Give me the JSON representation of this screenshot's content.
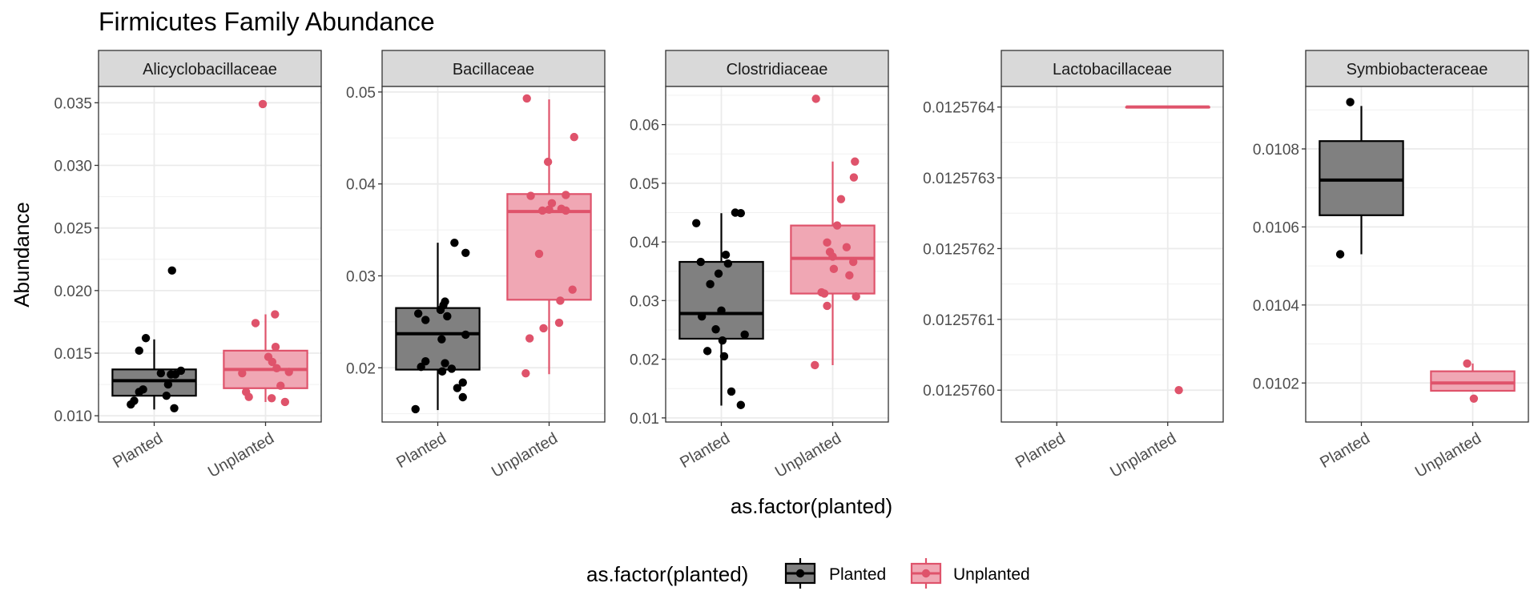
{
  "chart_data": {
    "type": "box",
    "title": "Firmicutes Family Abundance",
    "xlabel": "as.factor(planted)",
    "ylabel": "Abundance",
    "categories": [
      "Planted",
      "Unplanted"
    ],
    "legend": {
      "title": "as.factor(planted)",
      "position": "bottom",
      "items": [
        {
          "label": "Planted",
          "color": "#000000",
          "fill": "#808080"
        },
        {
          "label": "Unplanted",
          "color": "#DF536B",
          "fill": "#F0A7B4"
        }
      ]
    },
    "grid": true,
    "facets": [
      {
        "name": "Alicyclobacillaceae",
        "ylim": [
          0.0095,
          0.0363
        ],
        "yticks": [
          "0.010",
          "0.015",
          "0.020",
          "0.025",
          "0.030",
          "0.035"
        ],
        "groups": [
          {
            "group": "Planted",
            "min": 0.0105,
            "q1": 0.0116,
            "median": 0.0128,
            "q3": 0.0137,
            "max": 0.0161,
            "points": [
              [
                -0.42,
                0.0109
              ],
              [
                -0.36,
                0.0112
              ],
              [
                -0.27,
                0.0119
              ],
              [
                -0.2,
                0.0121
              ],
              [
                -0.27,
                0.0152
              ],
              [
                -0.15,
                0.0162
              ],
              [
                0.32,
                0.0216
              ],
              [
                0.12,
                0.0134
              ],
              [
                0.3,
                0.0133
              ],
              [
                0.38,
                0.0133
              ],
              [
                0.48,
                0.0136
              ],
              [
                0.25,
                0.0125
              ],
              [
                0.22,
                0.0116
              ],
              [
                0.36,
                0.0106
              ]
            ]
          },
          {
            "group": "Unplanted",
            "min": 0.0111,
            "q1": 0.0122,
            "median": 0.0137,
            "q3": 0.0152,
            "max": 0.0181,
            "points": [
              [
                -0.05,
                0.0349
              ],
              [
                -0.42,
                0.0134
              ],
              [
                -0.35,
                0.0119
              ],
              [
                -0.3,
                0.0115
              ],
              [
                -0.18,
                0.0174
              ],
              [
                0.17,
                0.0181
              ],
              [
                0.18,
                0.0155
              ],
              [
                0.05,
                0.0147
              ],
              [
                0.12,
                0.0143
              ],
              [
                0.2,
                0.0138
              ],
              [
                0.11,
                0.0114
              ],
              [
                0.27,
                0.0124
              ],
              [
                0.35,
                0.0111
              ],
              [
                0.42,
                0.0135
              ]
            ]
          }
        ]
      },
      {
        "name": "Bacillaceae",
        "ylim": [
          0.0141,
          0.0506
        ],
        "yticks": [
          "0.02",
          "0.03",
          "0.04",
          "0.05"
        ],
        "groups": [
          {
            "group": "Planted",
            "min": 0.0154,
            "q1": 0.0198,
            "median": 0.0237,
            "q3": 0.0265,
            "max": 0.0336,
            "points": [
              [
                -0.4,
                0.0155
              ],
              [
                -0.35,
                0.0259
              ],
              [
                -0.22,
                0.0252
              ],
              [
                -0.22,
                0.0207
              ],
              [
                0.05,
                0.0263
              ],
              [
                0.1,
                0.0268
              ],
              [
                0.13,
                0.0272
              ],
              [
                0.07,
                0.0231
              ],
              [
                0.08,
                0.0196
              ],
              [
                0.13,
                0.0205
              ],
              [
                0.17,
                0.0256
              ],
              [
                0.3,
                0.0336
              ],
              [
                0.35,
                0.0178
              ],
              [
                0.45,
                0.0184
              ],
              [
                0.45,
                0.0168
              ],
              [
                0.5,
                0.0325
              ],
              [
                0.5,
                0.0236
              ],
              [
                -0.3,
                0.0201
              ],
              [
                0.25,
                0.0199
              ]
            ]
          },
          {
            "group": "Unplanted",
            "min": 0.0193,
            "q1": 0.0274,
            "median": 0.037,
            "q3": 0.0389,
            "max": 0.0492,
            "points": [
              [
                -0.4,
                0.0493
              ],
              [
                -0.42,
                0.0194
              ],
              [
                -0.35,
                0.0232
              ],
              [
                -0.33,
                0.0387
              ],
              [
                -0.12,
                0.0371
              ],
              [
                -0.02,
                0.0424
              ],
              [
                -0.18,
                0.0324
              ],
              [
                -0.1,
                0.0243
              ],
              [
                0.0,
                0.0372
              ],
              [
                0.05,
                0.0379
              ],
              [
                0.2,
                0.0273
              ],
              [
                0.18,
                0.0249
              ],
              [
                0.22,
                0.0373
              ],
              [
                0.3,
                0.0388
              ],
              [
                0.3,
                0.0371
              ],
              [
                0.45,
                0.0451
              ],
              [
                0.42,
                0.0285
              ]
            ]
          }
        ]
      },
      {
        "name": "Clostridiaceae",
        "ylim": [
          0.0093,
          0.0665
        ],
        "yticks": [
          "0.01",
          "0.02",
          "0.03",
          "0.04",
          "0.05",
          "0.06"
        ],
        "groups": [
          {
            "group": "Planted",
            "min": 0.0121,
            "q1": 0.0235,
            "median": 0.0278,
            "q3": 0.0366,
            "max": 0.0449,
            "points": [
              [
                -0.45,
                0.0432
              ],
              [
                -0.37,
                0.0366
              ],
              [
                -0.35,
                0.0273
              ],
              [
                -0.25,
                0.0214
              ],
              [
                -0.2,
                0.0328
              ],
              [
                -0.1,
                0.0251
              ],
              [
                -0.05,
                0.0346
              ],
              [
                0.0,
                0.0283
              ],
              [
                0.02,
                0.0232
              ],
              [
                0.05,
                0.0205
              ],
              [
                0.08,
                0.0378
              ],
              [
                0.12,
                0.0363
              ],
              [
                0.18,
                0.0145
              ],
              [
                0.25,
                0.045
              ],
              [
                0.35,
                0.0449
              ],
              [
                0.35,
                0.0122
              ],
              [
                0.42,
                0.0242
              ]
            ]
          },
          {
            "group": "Unplanted",
            "min": 0.019,
            "q1": 0.0312,
            "median": 0.0372,
            "q3": 0.0428,
            "max": 0.0537,
            "points": [
              [
                -0.3,
                0.0644
              ],
              [
                -0.32,
                0.019
              ],
              [
                -0.2,
                0.0314
              ],
              [
                -0.15,
                0.0312
              ],
              [
                -0.1,
                0.0291
              ],
              [
                -0.1,
                0.0399
              ],
              [
                -0.05,
                0.0383
              ],
              [
                0.0,
                0.0375
              ],
              [
                0.02,
                0.0354
              ],
              [
                0.08,
                0.0428
              ],
              [
                0.15,
                0.0473
              ],
              [
                0.25,
                0.0391
              ],
              [
                0.3,
                0.0343
              ],
              [
                0.37,
                0.0366
              ],
              [
                0.4,
                0.0537
              ],
              [
                0.38,
                0.051
              ],
              [
                0.42,
                0.0307
              ]
            ]
          }
        ]
      },
      {
        "name": "Lactobacillaceae",
        "ylim": [
          0.012575955,
          0.012576429
        ],
        "yticks": [
          "0.0125760",
          "0.0125761",
          "0.0125762",
          "0.0125763",
          "0.0125764"
        ],
        "groups": [
          {
            "group": "Unplanted",
            "min": 0.0125764,
            "q1": 0.0125764,
            "median": 0.0125764,
            "q3": 0.0125764,
            "max": 0.0125764,
            "points": [
              [
                0.2,
                0.012576
              ]
            ]
          }
        ]
      },
      {
        "name": "Symbiobacteraceae",
        "ylim": [
          0.0101,
          0.01096
        ],
        "yticks": [
          "0.0102",
          "0.0104",
          "0.0106",
          "0.0108"
        ],
        "groups": [
          {
            "group": "Planted",
            "min": 0.01053,
            "q1": 0.01063,
            "median": 0.01072,
            "q3": 0.01082,
            "max": 0.01091,
            "points": [
              [
                -0.2,
                0.01092
              ],
              [
                -0.38,
                0.01053
              ]
            ]
          },
          {
            "group": "Unplanted",
            "min": 0.01018,
            "q1": 0.01018,
            "median": 0.0102,
            "q3": 0.01023,
            "max": 0.01025,
            "points": [
              [
                -0.1,
                0.01025
              ],
              [
                0.02,
                0.01016
              ]
            ]
          }
        ]
      }
    ]
  }
}
